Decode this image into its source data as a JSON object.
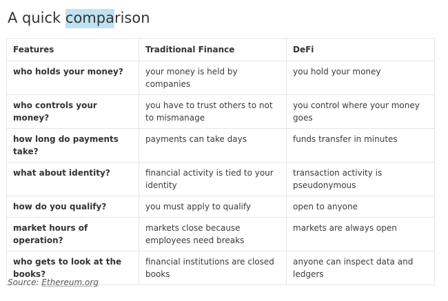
{
  "heading": {
    "before": "A quick ",
    "highlighted": "compa",
    "after": "rison"
  },
  "table": {
    "headers": [
      "Features",
      "Traditional Finance",
      "DeFi"
    ],
    "rows": [
      [
        "who holds your money?",
        "your money is held by companies",
        "you hold your money"
      ],
      [
        "who controls your money?",
        "you have to trust others to not to mismanage",
        "you control where your money goes"
      ],
      [
        "how long do payments take?",
        "payments can take days",
        "funds transfer in minutes"
      ],
      [
        "what about identity?",
        "financial activity is tied to your identity",
        "transaction activity is pseudonymous"
      ],
      [
        "how do you qualify?",
        "you must apply to qualify",
        "open to anyone"
      ],
      [
        "market hours of operation?",
        "markets close because employees need breaks",
        "markets are always open"
      ],
      [
        "who gets to look at the books?",
        "financial institutions are closed books",
        "anyone can inspect data and ledgers"
      ]
    ]
  },
  "source": {
    "label": "Source: ",
    "link_text": "Ethereum.org"
  },
  "colors": {
    "highlight": "#bfe1f2",
    "border": "#e6e6e6",
    "text": "#333333"
  }
}
